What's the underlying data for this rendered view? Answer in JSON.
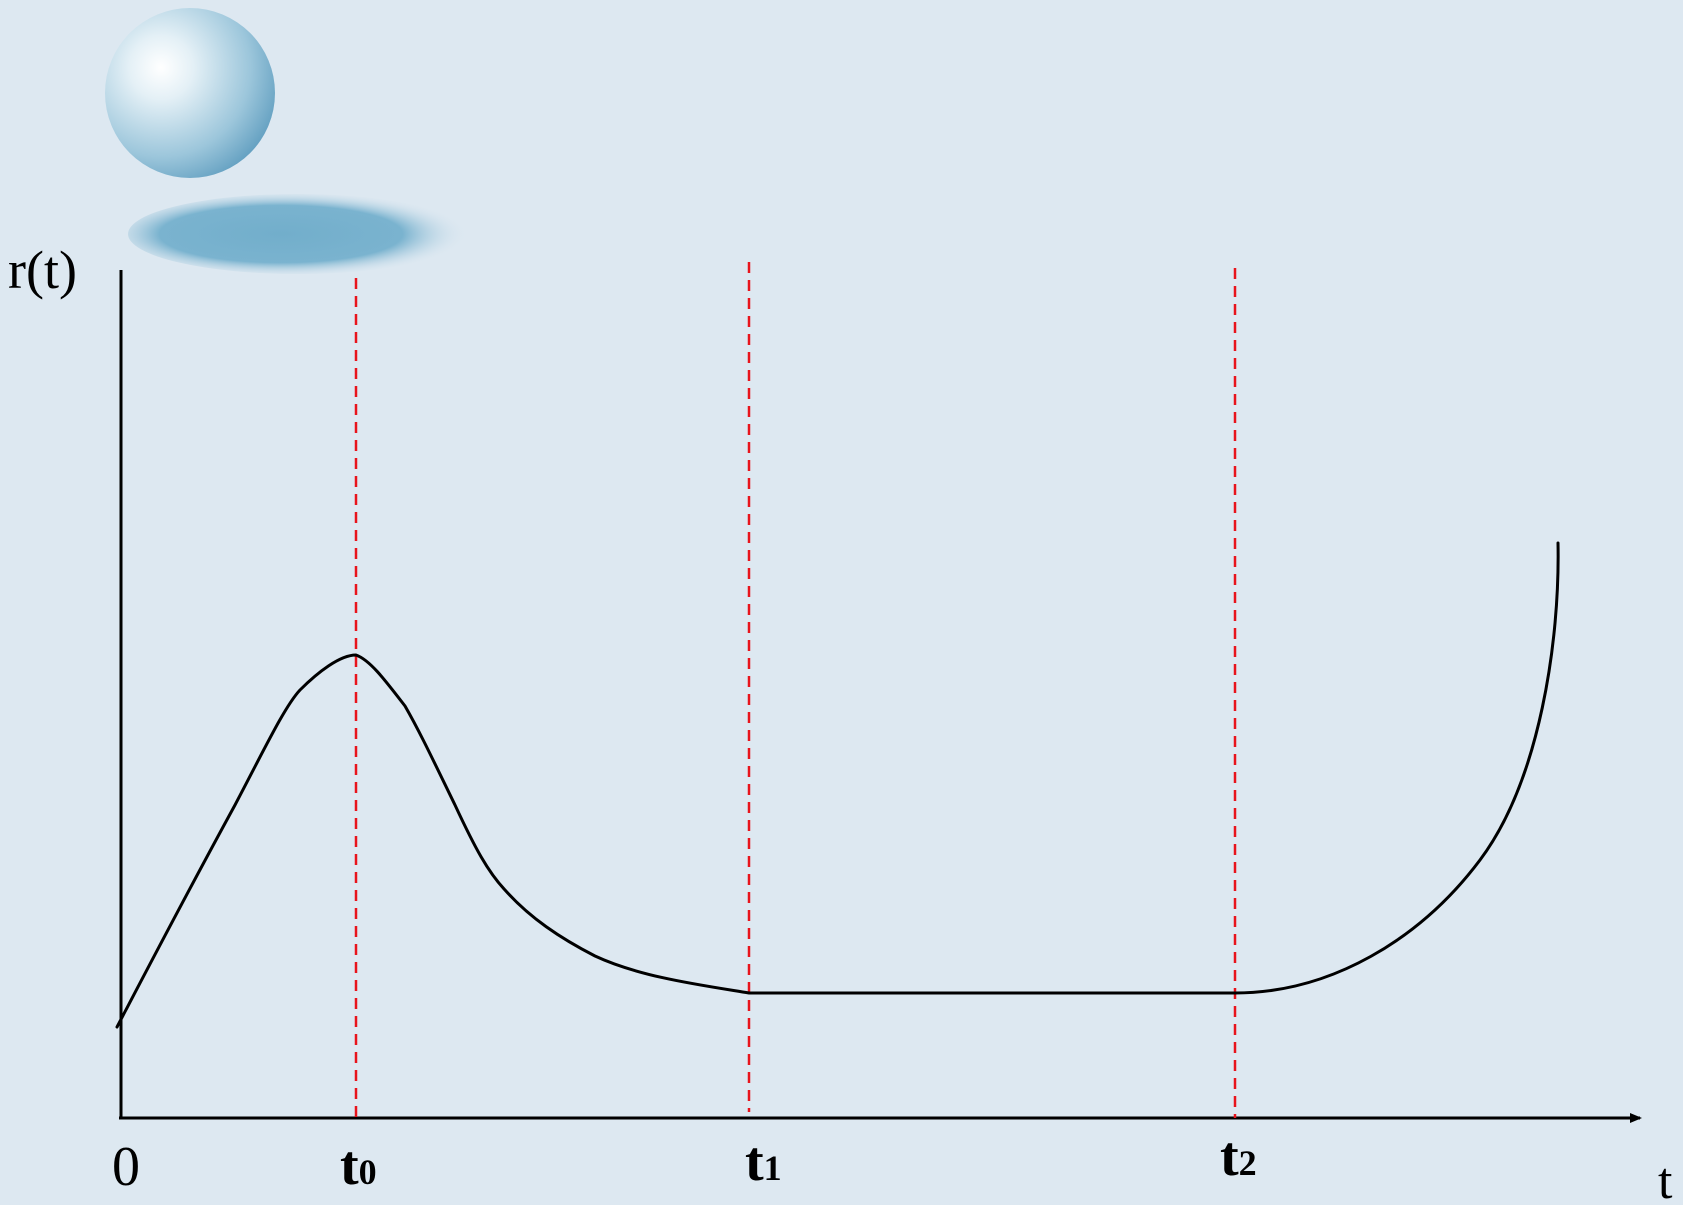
{
  "diagram": {
    "y_axis_label": "r(t)",
    "x_axis_label": "t",
    "origin_label": "0",
    "markers": [
      {
        "id": "t0",
        "main": "t",
        "sub": "0"
      },
      {
        "id": "t1",
        "main": "t",
        "sub": "1"
      },
      {
        "id": "t2",
        "main": "t",
        "sub": "2"
      }
    ],
    "colors": {
      "background": "#dde8f1",
      "curve": "#000000",
      "axes": "#000000",
      "marker_lines": "#e8141c",
      "sphere": "#7fb3cf"
    },
    "decoration": "sphere-with-shadow"
  }
}
